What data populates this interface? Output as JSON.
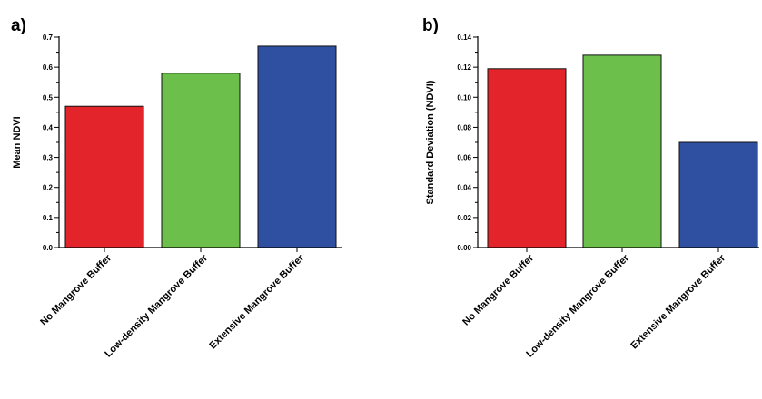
{
  "chart_data": [
    {
      "type": "bar",
      "panel_label": "a)",
      "ylabel": "Mean NDVI",
      "categories": [
        "No Mangrove Buffer",
        "Low-density Mangrove Buffer",
        "Extensive Mangrove Buffer"
      ],
      "values": [
        0.47,
        0.58,
        0.67
      ],
      "colors": [
        "#e3242b",
        "#6cbf4b",
        "#2f4fa0"
      ],
      "ylim": [
        0,
        0.75
      ],
      "yticks": [
        "0.0",
        "0.1",
        "0.2",
        "0.3",
        "0.4",
        "0.5",
        "0.6",
        "0.7"
      ],
      "grid": false
    },
    {
      "type": "bar",
      "panel_label": "b)",
      "ylabel": "Standard Deviation  (NDVI)",
      "categories": [
        "No Mangrove Buffer",
        "Low-density Mangrove Buffer",
        "Extensive Mangrove Buffer"
      ],
      "values": [
        0.119,
        0.128,
        0.07
      ],
      "colors": [
        "#e3242b",
        "#6cbf4b",
        "#2f4fa0"
      ],
      "ylim": [
        0,
        0.14
      ],
      "yticks": [
        "0.00",
        "0.02",
        "0.04",
        "0.06",
        "0.08",
        "0.10",
        "0.12",
        "0.14"
      ],
      "grid": false
    }
  ]
}
